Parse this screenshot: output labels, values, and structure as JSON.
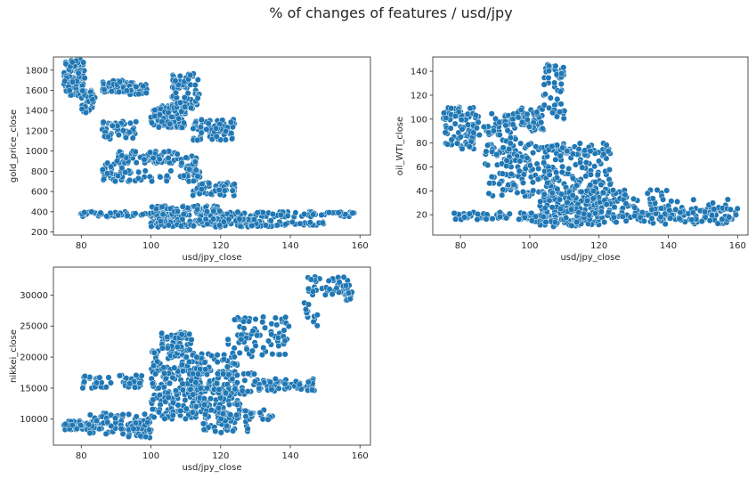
{
  "figure": {
    "title": "% of changes of features / usd/jpy"
  },
  "chart_data": [
    {
      "type": "scatter",
      "title": "",
      "xlabel": "usd/jpy_close",
      "ylabel": "gold_price_close",
      "xlim": [
        72,
        163
      ],
      "ylim": [
        170,
        1930
      ],
      "xticks": [
        80,
        100,
        120,
        140,
        160
      ],
      "yticks": [
        200,
        400,
        600,
        800,
        1000,
        1200,
        1400,
        1600,
        1800
      ],
      "color": "#1f77b4",
      "clusters": [
        {
          "x": [
            75,
            81
          ],
          "y": [
            1550,
            1900
          ],
          "n": 110
        },
        {
          "x": [
            80,
            84
          ],
          "y": [
            1380,
            1600
          ],
          "n": 50
        },
        {
          "x": [
            86,
            95
          ],
          "y": [
            1580,
            1700
          ],
          "n": 50
        },
        {
          "x": [
            93,
            99
          ],
          "y": [
            1560,
            1660
          ],
          "n": 35
        },
        {
          "x": [
            100,
            110
          ],
          "y": [
            1230,
            1450
          ],
          "n": 120
        },
        {
          "x": [
            106,
            114
          ],
          "y": [
            1420,
            1780
          ],
          "n": 70
        },
        {
          "x": [
            112,
            124
          ],
          "y": [
            1100,
            1320
          ],
          "n": 70
        },
        {
          "x": [
            86,
            96
          ],
          "y": [
            1120,
            1300
          ],
          "n": 45
        },
        {
          "x": [
            86,
            92
          ],
          "y": [
            700,
            890
          ],
          "n": 35
        },
        {
          "x": [
            90,
            108
          ],
          "y": [
            880,
            1000
          ],
          "n": 80
        },
        {
          "x": [
            108,
            114
          ],
          "y": [
            700,
            960
          ],
          "n": 40
        },
        {
          "x": [
            112,
            124
          ],
          "y": [
            560,
            700
          ],
          "n": 55
        },
        {
          "x": [
            92,
            106
          ],
          "y": [
            700,
            820
          ],
          "n": 25
        },
        {
          "x": [
            79,
            160
          ],
          "y": [
            350,
            400
          ],
          "n": 160
        },
        {
          "x": [
            100,
            135
          ],
          "y": [
            250,
            330
          ],
          "n": 140
        },
        {
          "x": [
            100,
            120
          ],
          "y": [
            400,
            460
          ],
          "n": 45
        },
        {
          "x": [
            135,
            150
          ],
          "y": [
            265,
            300
          ],
          "n": 25
        }
      ]
    },
    {
      "type": "scatter",
      "title": "",
      "xlabel": "usd/jpy_close",
      "ylabel": "oil_WTI_close",
      "xlim": [
        72,
        163
      ],
      "ylim": [
        3,
        152
      ],
      "xticks": [
        80,
        100,
        120,
        140,
        160
      ],
      "yticks": [
        20,
        40,
        60,
        80,
        100,
        120,
        140
      ],
      "color": "#1f77b4",
      "clusters": [
        {
          "x": [
            75,
            84
          ],
          "y": [
            75,
            110
          ],
          "n": 90
        },
        {
          "x": [
            84,
            95
          ],
          "y": [
            85,
            105
          ],
          "n": 40
        },
        {
          "x": [
            95,
            104
          ],
          "y": [
            90,
            110
          ],
          "n": 60
        },
        {
          "x": [
            104,
            110
          ],
          "y": [
            100,
            146
          ],
          "n": 50
        },
        {
          "x": [
            87,
            100
          ],
          "y": [
            60,
            85
          ],
          "n": 45
        },
        {
          "x": [
            92,
            105
          ],
          "y": [
            35,
            80
          ],
          "n": 70
        },
        {
          "x": [
            104,
            124
          ],
          "y": [
            30,
            80
          ],
          "n": 170
        },
        {
          "x": [
            102,
            120
          ],
          "y": [
            10,
            40
          ],
          "n": 130
        },
        {
          "x": [
            88,
            96
          ],
          "y": [
            30,
            55
          ],
          "n": 20
        },
        {
          "x": [
            120,
            140
          ],
          "y": [
            15,
            42
          ],
          "n": 80
        },
        {
          "x": [
            78,
            100
          ],
          "y": [
            16,
            22
          ],
          "n": 50
        },
        {
          "x": [
            100,
            160
          ],
          "y": [
            12,
            26
          ],
          "n": 140
        },
        {
          "x": [
            140,
            158
          ],
          "y": [
            15,
            33
          ],
          "n": 35
        }
      ]
    },
    {
      "type": "scatter",
      "title": "",
      "xlabel": "usd/jpy_close",
      "ylabel": "nikkei_close",
      "xlim": [
        72,
        163
      ],
      "ylim": [
        5800,
        34500
      ],
      "xticks": [
        80,
        100,
        120,
        140,
        160
      ],
      "yticks": [
        10000,
        15000,
        20000,
        25000,
        30000
      ],
      "color": "#1f77b4",
      "clusters": [
        {
          "x": [
            75,
            86
          ],
          "y": [
            8300,
            9800
          ],
          "n": 60
        },
        {
          "x": [
            82,
            100
          ],
          "y": [
            7500,
            11000
          ],
          "n": 70
        },
        {
          "x": [
            93,
            100
          ],
          "y": [
            7000,
            9500
          ],
          "n": 30
        },
        {
          "x": [
            80,
            98
          ],
          "y": [
            15000,
            17200
          ],
          "n": 50
        },
        {
          "x": [
            100,
            115
          ],
          "y": [
            10000,
            21000
          ],
          "n": 220
        },
        {
          "x": [
            103,
            112
          ],
          "y": [
            21000,
            24000
          ],
          "n": 50
        },
        {
          "x": [
            112,
            125
          ],
          "y": [
            12000,
            20500
          ],
          "n": 110
        },
        {
          "x": [
            115,
            128
          ],
          "y": [
            7800,
            12500
          ],
          "n": 60
        },
        {
          "x": [
            120,
            135
          ],
          "y": [
            9500,
            11500
          ],
          "n": 35
        },
        {
          "x": [
            122,
            140
          ],
          "y": [
            20000,
            26500
          ],
          "n": 80
        },
        {
          "x": [
            130,
            147
          ],
          "y": [
            14500,
            16500
          ],
          "n": 55
        },
        {
          "x": [
            118,
            132
          ],
          "y": [
            14000,
            17500
          ],
          "n": 40
        },
        {
          "x": [
            145,
            157
          ],
          "y": [
            30000,
            33000
          ],
          "n": 45
        },
        {
          "x": [
            144,
            148
          ],
          "y": [
            25000,
            29000
          ],
          "n": 12
        },
        {
          "x": [
            156,
            160
          ],
          "y": [
            29000,
            30500
          ],
          "n": 8
        }
      ]
    }
  ]
}
